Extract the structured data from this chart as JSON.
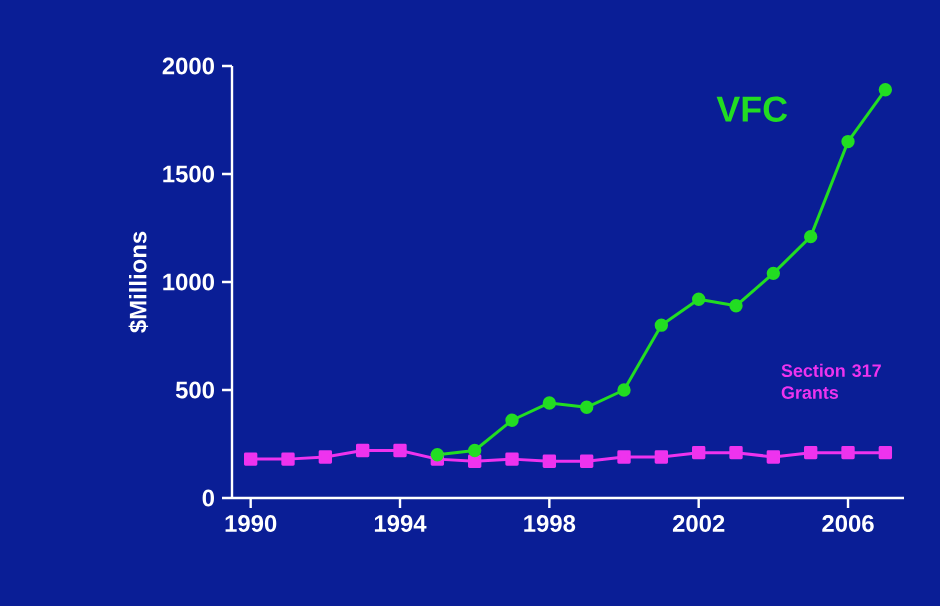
{
  "chart_data": {
    "type": "line",
    "ylabel": "$Millions",
    "x": [
      1990,
      1991,
      1992,
      1993,
      1994,
      1995,
      1996,
      1997,
      1998,
      1999,
      2000,
      2001,
      2002,
      2003,
      2004,
      2005,
      2006,
      2007
    ],
    "series": [
      {
        "name": "VFC",
        "color": "#22dd22",
        "marker": "circle",
        "values": [
          null,
          null,
          null,
          null,
          null,
          200,
          220,
          360,
          440,
          420,
          500,
          800,
          920,
          890,
          1040,
          1210,
          1650,
          1890
        ]
      },
      {
        "name": "Section 317 Grants",
        "color": "#ee33ee",
        "marker": "square",
        "values": [
          180,
          180,
          190,
          220,
          220,
          180,
          170,
          180,
          170,
          170,
          190,
          190,
          210,
          210,
          190,
          210,
          210,
          210
        ]
      }
    ],
    "xlim": [
      1989.5,
      2007.5
    ],
    "ylim": [
      0,
      2000
    ],
    "xticks": [
      1990,
      1994,
      1998,
      2002,
      2006
    ],
    "yticks": [
      0,
      500,
      1000,
      1500,
      2000
    ],
    "line_style": "solid"
  }
}
